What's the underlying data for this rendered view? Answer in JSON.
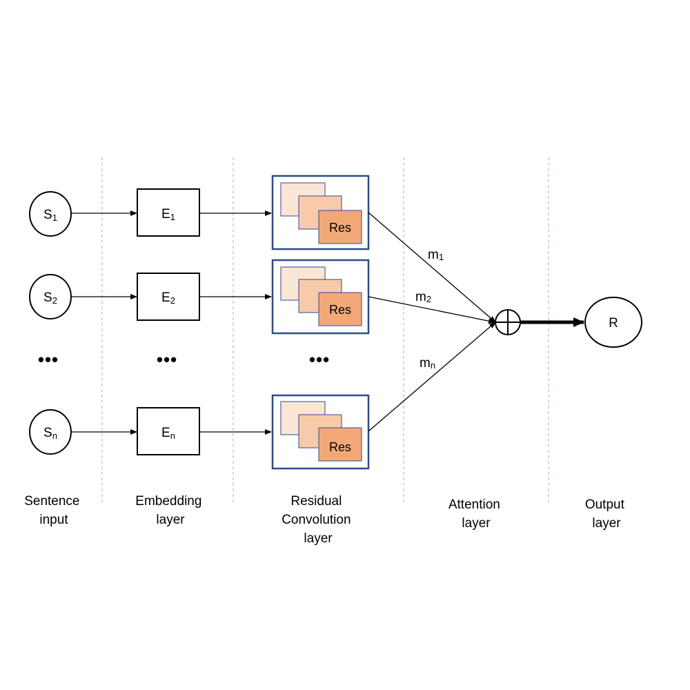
{
  "colors": {
    "node_border": "#000000",
    "res_box_border": "#2e4a8c",
    "card1": "#fbe6d6",
    "card2": "#f7cba9",
    "card3": "#f2a977",
    "separator": "#8fb0d8"
  },
  "inputs": [
    {
      "base": "S",
      "sub": "1"
    },
    {
      "base": "S",
      "sub": "2"
    },
    {
      "base": "S",
      "sub": "n"
    }
  ],
  "embeddings": [
    {
      "base": "E",
      "sub": "1"
    },
    {
      "base": "E",
      "sub": "2"
    },
    {
      "base": "E",
      "sub": "n"
    }
  ],
  "res_label": "Res",
  "weights": [
    {
      "base": "m",
      "sub": "1"
    },
    {
      "base": "m",
      "sub": "2"
    },
    {
      "base": "m",
      "sub": "n"
    }
  ],
  "ellipsis": "•••",
  "output_label": "R",
  "sum_icon": "circle-plus-icon",
  "column_labels": {
    "sentence": [
      "Sentence",
      "input"
    ],
    "embedding": [
      "Embedding",
      "layer"
    ],
    "residual": [
      "Residual",
      "Convolution",
      "layer"
    ],
    "attention": [
      "Attention",
      "layer"
    ],
    "output": [
      "Output",
      "layer"
    ]
  }
}
